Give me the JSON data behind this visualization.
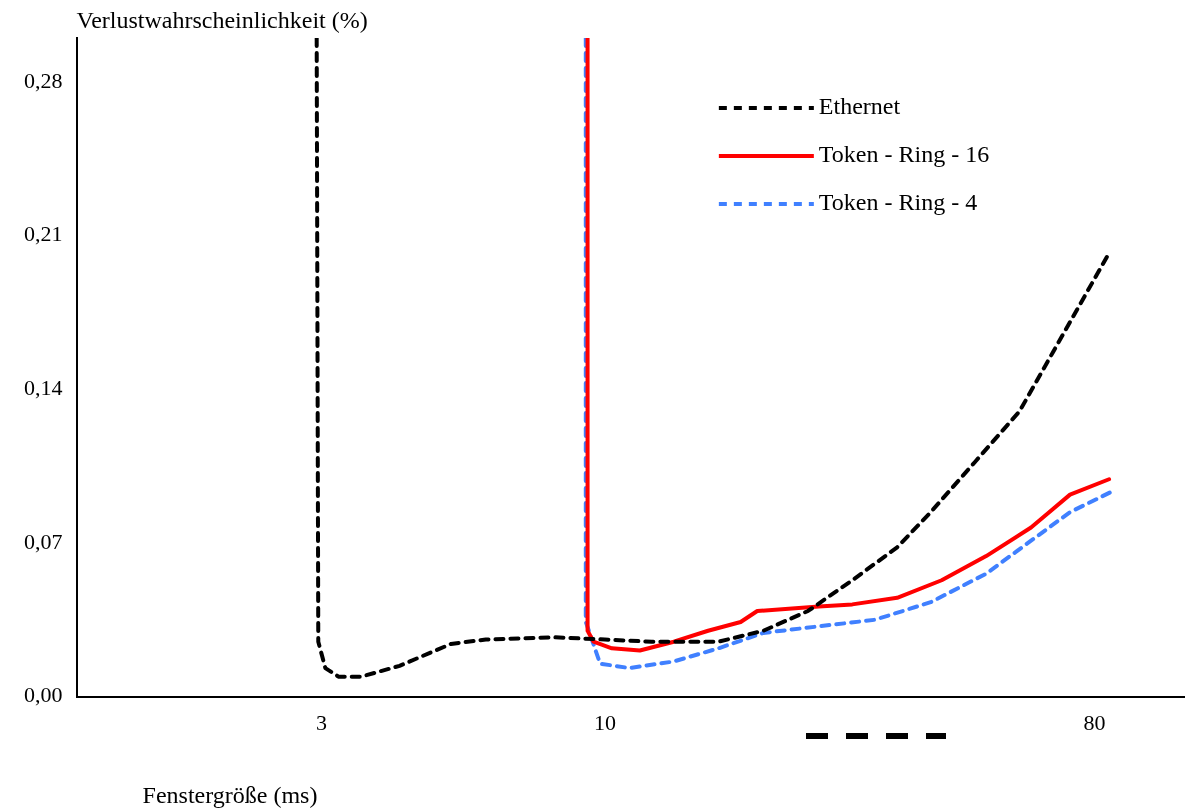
{
  "chart_data": {
    "type": "line",
    "xlabel": "Fenstergröße (ms)",
    "ylabel": "Verlustwahrscheinlichkeit (%)",
    "log": "x",
    "xlim": [
      1.06,
      117
    ],
    "xticks": [
      3,
      10,
      80
    ],
    "ylim": [
      0,
      0.3
    ],
    "yticks": [
      {
        "value": 0,
        "label": "0,00"
      },
      {
        "value": 0.07,
        "label": "0,07"
      },
      {
        "value": 0.14,
        "label": "0,14"
      },
      {
        "value": 0.21,
        "label": "0,21"
      },
      {
        "value": 0.28,
        "label": "0,28"
      }
    ],
    "grid": false,
    "legend": "top right",
    "marker": "none",
    "series": [
      {
        "name": "Ethernet",
        "color": "#000000",
        "line_style": "dashed",
        "x": [
          2.94,
          2.96,
          3.05,
          3.23,
          3.54,
          4.18,
          5.2,
          6.03,
          8.09,
          10,
          12.2,
          16.2,
          19.6,
          23.7,
          28.6,
          34.6,
          39.9,
          48.2,
          58.2,
          67.1,
          85.1
        ],
        "values": [
          0.3,
          0.025,
          0.013,
          0.009,
          0.009,
          0.014,
          0.024,
          0.026,
          0.027,
          0.026,
          0.025,
          0.025,
          0.03,
          0.039,
          0.053,
          0.068,
          0.084,
          0.107,
          0.13,
          0.157,
          0.202
        ]
      },
      {
        "name": "Token - Ring - 16",
        "color": "#ff0000",
        "line_style": "solid",
        "x": [
          9.29,
          9.29,
          9.53,
          10.3,
          11.6,
          13.4,
          15.5,
          17.8,
          19.1,
          24.8,
          28.6,
          34.6,
          41.8,
          50.5,
          61.1,
          72.1,
          85.1
        ],
        "values": [
          0.3,
          0.03,
          0.025,
          0.022,
          0.021,
          0.025,
          0.03,
          0.034,
          0.039,
          0.041,
          0.042,
          0.045,
          0.053,
          0.064,
          0.077,
          0.092,
          0.099
        ]
      },
      {
        "name": "Token - Ring - 4",
        "color": "#4080ff",
        "line_style": "dashed",
        "x": [
          9.22,
          9.22,
          9.8,
          11.1,
          13.4,
          16.2,
          19.6,
          24.8,
          31.5,
          39.9,
          50.5,
          61.1,
          72.1,
          87.1
        ],
        "values": [
          0.3,
          0.034,
          0.015,
          0.013,
          0.016,
          0.022,
          0.029,
          0.032,
          0.035,
          0.043,
          0.056,
          0.071,
          0.084,
          0.094
        ]
      }
    ]
  }
}
